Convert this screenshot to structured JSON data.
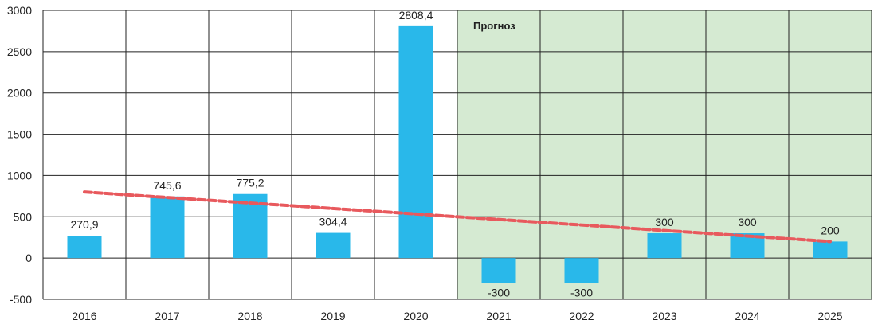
{
  "chart_data": {
    "type": "bar",
    "title": "",
    "xlabel": "",
    "ylabel": "",
    "categories": [
      "2016",
      "2017",
      "2018",
      "2019",
      "2020",
      "2021",
      "2022",
      "2023",
      "2024",
      "2025"
    ],
    "values": [
      270.9,
      745.6,
      775.2,
      304.4,
      2808.4,
      -300,
      -300,
      300,
      300,
      200
    ],
    "data_labels": [
      "270,9",
      "745,6",
      "775,2",
      "304,4",
      "2808,4",
      "-300",
      "-300",
      "300",
      "300",
      "200"
    ],
    "ylim": [
      -500,
      3000
    ],
    "yticks": [
      -500,
      0,
      500,
      1000,
      1500,
      2000,
      2500,
      3000
    ],
    "ytick_labels": [
      "-500",
      "0",
      "500",
      "1000",
      "1500",
      "2000",
      "2500",
      "3000"
    ],
    "grid": true,
    "trendline": {
      "style": "dashed",
      "start": {
        "category": "2016",
        "value": 800
      },
      "end": {
        "category": "2025",
        "value": 200
      }
    },
    "forecast": {
      "label": "Прогноз",
      "from_category": "2021",
      "to_category": "2025"
    },
    "colors": {
      "bar": "#29b8ea",
      "forecast_bg": "#d5ead2",
      "trend": "#e8595d",
      "grid": "#222222"
    }
  }
}
